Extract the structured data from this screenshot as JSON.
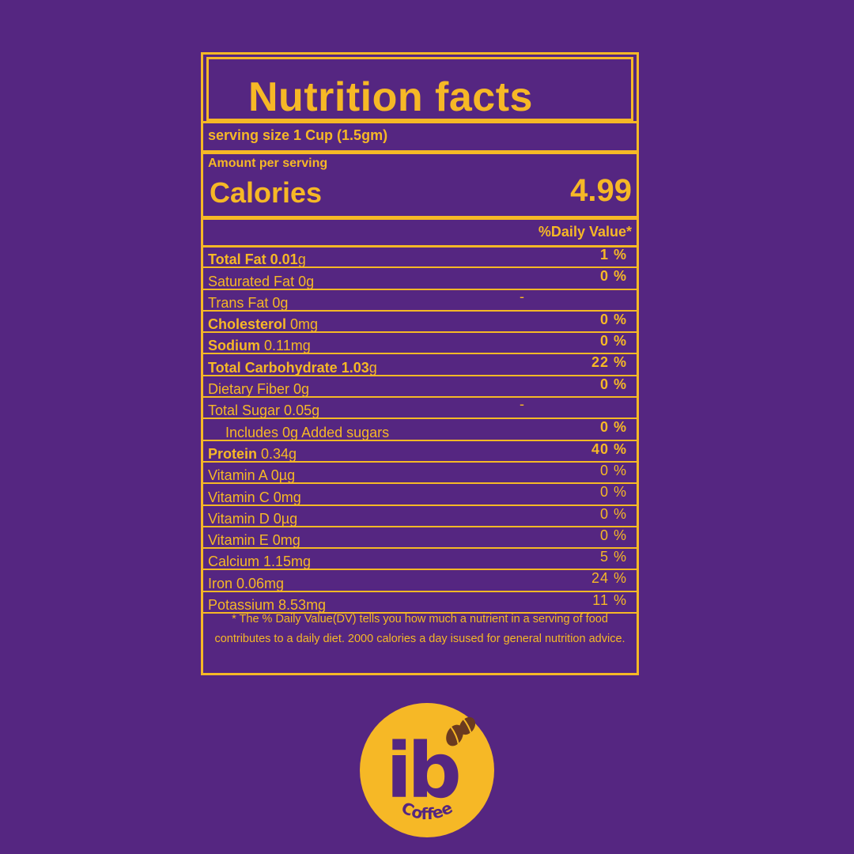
{
  "label": {
    "title": "Nutrition facts",
    "serving": "serving size 1 Cup (1.5gm)",
    "amount_per_serving": "Amount per serving",
    "calories_label": "Calories",
    "calories_value": "4.99",
    "daily_value_header": "%Daily Value*",
    "nutrients": [
      {
        "bold_part": "Total Fat 0.01",
        "rest": "g",
        "pct": "1 %"
      },
      {
        "bold_part": "",
        "rest": "Saturated Fat 0g",
        "pct": "0 %"
      },
      {
        "bold_part": "",
        "rest": "Trans Fat 0g",
        "dash": "-"
      },
      {
        "bold_part": "Cholesterol",
        "rest": " 0mg",
        "pct": "0 %"
      },
      {
        "bold_part": "Sodium",
        "rest": " 0.11mg",
        "pct": "0 %"
      },
      {
        "bold_part": "Total  Carbohydrate  1.03",
        "rest": "g",
        "pct": "22 %"
      },
      {
        "bold_part": "",
        "rest": "Dietary Fiber 0g",
        "pct": "0 %"
      },
      {
        "bold_part": "",
        "rest": "Total Sugar 0.05g",
        "dash": "-"
      },
      {
        "bold_part": "",
        "rest": "Includes 0g Added sugars",
        "pct": "0 %",
        "indent": true
      },
      {
        "bold_part": "Protein",
        "rest": " 0.34g",
        "pct": "40 %"
      },
      {
        "bold_part": "",
        "rest": "Vitamin A 0µg",
        "pct": "0 %",
        "plain": true
      },
      {
        "bold_part": "",
        "rest": "Vitamin C 0mg",
        "pct": "0 %",
        "plain": true
      },
      {
        "bold_part": "",
        "rest": "Vitamin D 0µg",
        "pct": "0 %",
        "plain": true
      },
      {
        "bold_part": "",
        "rest": "Vitamin E 0mg",
        "pct": "0 %",
        "plain": true
      },
      {
        "bold_part": "",
        "rest": "Calcium 1.15mg",
        "pct": "5 %",
        "plain": true
      },
      {
        "bold_part": "",
        "rest": "Iron 0.06mg",
        "pct": "24 %",
        "plain": true
      },
      {
        "bold_part": "",
        "rest": "Potassium 8.53mg",
        "pct": "11 %",
        "plain": true
      }
    ],
    "footnote": "* The % Daily Value(DV) tells you how much a nutrient in a serving of food contributes to a daily diet. 2000 calories a day isused for general nutrition advice."
  },
  "logo": {
    "mark": "ib",
    "word": "Coffee",
    "icon": "coffee-beans-icon"
  },
  "colors": {
    "background": "#552681",
    "accent": "#F6B826",
    "bean": "#6B3A1F"
  }
}
